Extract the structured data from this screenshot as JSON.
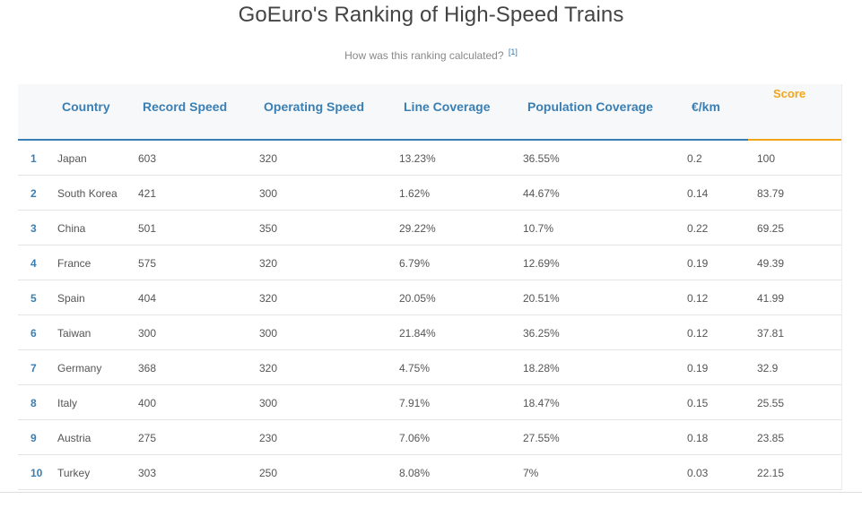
{
  "header": {
    "title": "GoEuro's Ranking of High-Speed Trains",
    "subtitle": "How was this ranking calculated?",
    "ref": "[1]"
  },
  "table": {
    "columns": [
      "Country",
      "Record Speed",
      "Operating Speed",
      "Line Coverage",
      "Population Coverage",
      "€/km",
      "Score"
    ],
    "rows": [
      [
        "1",
        "Japan",
        "603",
        "320",
        "13.23%",
        "36.55%",
        "0.2",
        "100"
      ],
      [
        "2",
        "South Korea",
        "421",
        "300",
        "1.62%",
        "44.67%",
        "0.14",
        "83.79"
      ],
      [
        "3",
        "China",
        "501",
        "350",
        "29.22%",
        "10.7%",
        "0.22",
        "69.25"
      ],
      [
        "4",
        "France",
        "575",
        "320",
        "6.79%",
        "12.69%",
        "0.19",
        "49.39"
      ],
      [
        "5",
        "Spain",
        "404",
        "320",
        "20.05%",
        "20.51%",
        "0.12",
        "41.99"
      ],
      [
        "6",
        "Taiwan",
        "300",
        "300",
        "21.84%",
        "36.25%",
        "0.12",
        "37.81"
      ],
      [
        "7",
        "Germany",
        "368",
        "320",
        "4.75%",
        "18.28%",
        "0.19",
        "32.9"
      ],
      [
        "8",
        "Italy",
        "400",
        "300",
        "7.91%",
        "18.47%",
        "0.15",
        "25.55"
      ],
      [
        "9",
        "Austria",
        "275",
        "230",
        "7.06%",
        "27.55%",
        "0.18",
        "23.85"
      ],
      [
        "10",
        "Turkey",
        "303",
        "250",
        "8.08%",
        "7%",
        "0.03",
        "22.15"
      ]
    ]
  },
  "colors": {
    "accent": "#3a7fb3",
    "score": "#f2a51a"
  }
}
